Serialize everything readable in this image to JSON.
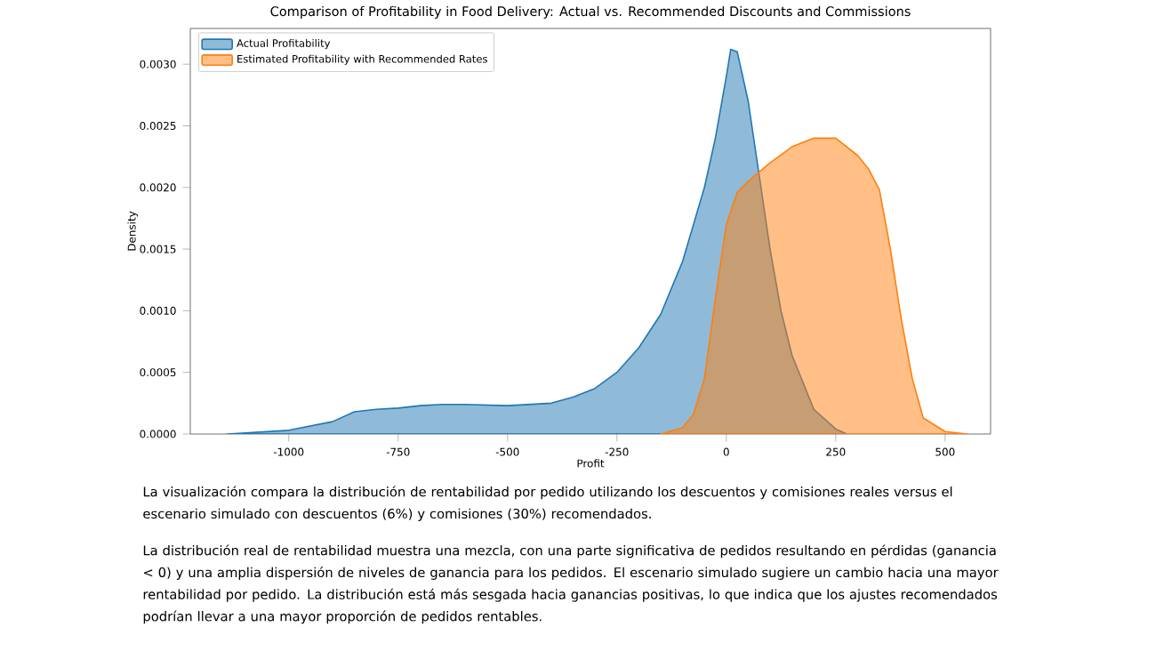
{
  "chart_data": {
    "type": "area",
    "title": "Comparison of Profitability in Food Delivery: Actual vs. Recommended Discounts and Commissions",
    "xlabel": "Profit",
    "ylabel": "Density",
    "xlim": [
      -1225,
      604
    ],
    "ylim": [
      0,
      0.00329
    ],
    "xticks": [
      -1000,
      -750,
      -500,
      -250,
      0,
      250,
      500
    ],
    "yticks": [
      {
        "value": 0,
        "label": "0.0000"
      },
      {
        "value": 0.0005,
        "label": "0.0005"
      },
      {
        "value": 0.001,
        "label": "0.0010"
      },
      {
        "value": 0.0015,
        "label": "0.0015"
      },
      {
        "value": 0.002,
        "label": "0.0020"
      },
      {
        "value": 0.0025,
        "label": "0.0025"
      },
      {
        "value": 0.003,
        "label": "0.0030"
      }
    ],
    "legend": "top left",
    "grid": false,
    "series": [
      {
        "name": "Actual Profitability",
        "color": "#1f77b4",
        "x": [
          -1140,
          -1000,
          -900,
          -850,
          -800,
          -750,
          -700,
          -650,
          -600,
          -500,
          -400,
          -350,
          -300,
          -250,
          -200,
          -150,
          -100,
          -50,
          -25,
          0,
          10,
          25,
          50,
          75,
          100,
          125,
          150,
          200,
          250,
          275
        ],
        "values": [
          0,
          3e-05,
          0.0001,
          0.00018,
          0.0002,
          0.00021,
          0.00023,
          0.00024,
          0.00024,
          0.00023,
          0.00025,
          0.0003,
          0.00037,
          0.0005,
          0.0007,
          0.00097,
          0.0014,
          0.002,
          0.0024,
          0.0029,
          0.00312,
          0.0031,
          0.0027,
          0.0021,
          0.0015,
          0.001,
          0.00064,
          0.0002,
          4e-05,
          0
        ]
      },
      {
        "name": "Estimated Profitability with Recommended Rates",
        "color": "#ff7f0e",
        "x": [
          -150,
          -100,
          -75,
          -50,
          -25,
          0,
          25,
          50,
          100,
          150,
          200,
          250,
          300,
          325,
          350,
          375,
          400,
          425,
          450,
          500,
          550
        ],
        "values": [
          0,
          5e-05,
          0.00016,
          0.00045,
          0.0011,
          0.0017,
          0.00196,
          0.00205,
          0.0022,
          0.00233,
          0.0024,
          0.0024,
          0.00226,
          0.00215,
          0.00198,
          0.0015,
          0.00093,
          0.00045,
          0.00013,
          2e-05,
          0
        ]
      }
    ],
    "annotations": [
      "La visualización compara la distribución de rentabilidad por pedido utilizando los descuentos y comisiones reales versus el escenario simulado con descuentos (6%) y comisiones (30%) recomendados.",
      "La distribución real de rentabilidad muestra una mezcla, con una parte significativa de pedidos resultando en pérdidas (ganancia < 0) y una amplia dispersión de niveles de ganancia para los pedidos. El escenario simulado sugiere un cambio hacia una mayor rentabilidad por pedido. La distribución está más sesgada hacia ganancias positivas, lo que indica que los ajustes recomendados podrían llevar a una mayor proporción de pedidos rentables."
    ]
  }
}
